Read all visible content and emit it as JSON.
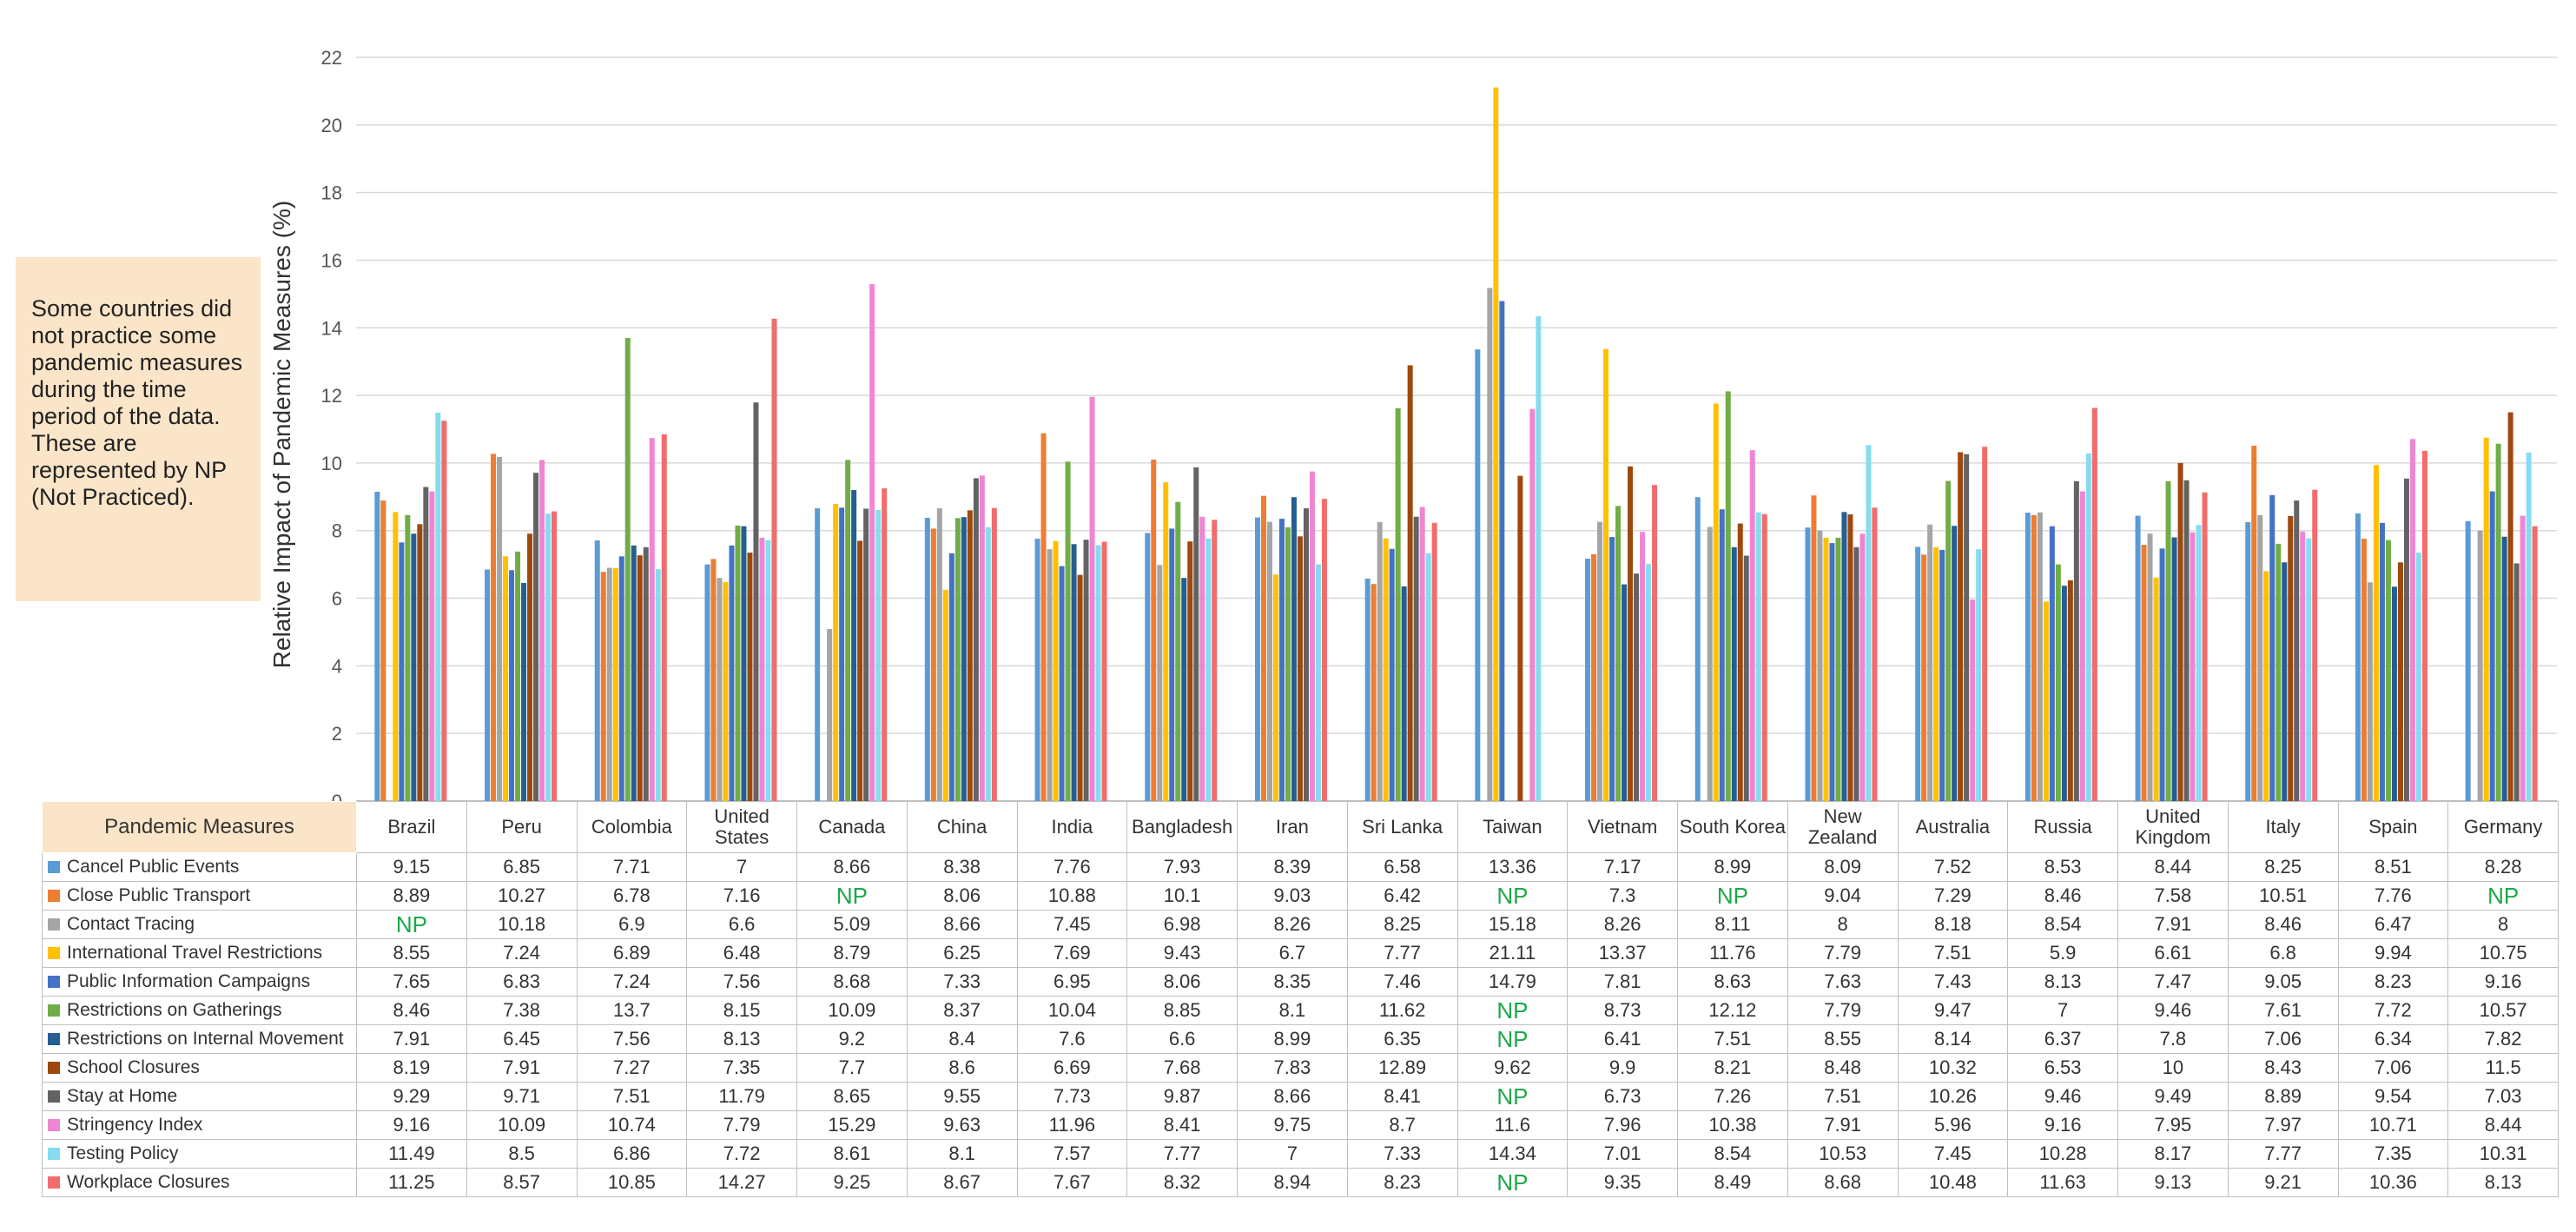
{
  "note": "Some countries did not practice some pandemic measures during the time period of the data. These are represented by NP (Not Practiced).",
  "table_header": "Pandemic Measures",
  "chart_data": {
    "type": "bar",
    "title": "",
    "xlabel": "",
    "ylabel": "Relative Impact of Pandemic Measures (%)",
    "ylim": [
      0,
      22
    ],
    "yticks": [
      "0",
      "2",
      "4",
      "6",
      "8",
      "10",
      "12",
      "14",
      "16",
      "18",
      "20",
      "22"
    ],
    "grid": true,
    "legend": "table-left",
    "categories": [
      "Brazil",
      "Peru",
      "Colombia",
      "United States",
      "Canada",
      "China",
      "India",
      "Bangladesh",
      "Iran",
      "Sri Lanka",
      "Taiwan",
      "Vietnam",
      "South Korea",
      "New Zealand",
      "Australia",
      "Russia",
      "United Kingdom",
      "Italy",
      "Spain",
      "Germany"
    ],
    "series": [
      {
        "name": "Cancel Public Events",
        "color": "#5b9bd5",
        "display": [
          "9.15",
          "6.85",
          "7.71",
          "7",
          "8.66",
          "8.38",
          "7.76",
          "7.93",
          "8.39",
          "6.58",
          "13.36",
          "7.17",
          "8.99",
          "8.09",
          "7.52",
          "8.53",
          "8.44",
          "8.25",
          "8.51",
          "8.28"
        ]
      },
      {
        "name": "Close Public Transport",
        "color": "#ed7d31",
        "display": [
          "8.89",
          "10.27",
          "6.78",
          "7.16",
          "NP",
          "8.06",
          "10.88",
          "10.1",
          "9.03",
          "6.42",
          "NP",
          "7.3",
          "NP",
          "9.04",
          "7.29",
          "8.46",
          "7.58",
          "10.51",
          "7.76",
          "NP"
        ]
      },
      {
        "name": "Contact Tracing",
        "color": "#a5a5a5",
        "display": [
          "NP",
          "10.18",
          "6.9",
          "6.6",
          "5.09",
          "8.66",
          "7.45",
          "6.98",
          "8.26",
          "8.25",
          "15.18",
          "8.26",
          "8.11",
          "8",
          "8.18",
          "8.54",
          "7.91",
          "8.46",
          "6.47",
          "8"
        ]
      },
      {
        "name": "International Travel Restrictions",
        "color": "#ffc000",
        "display": [
          "8.55",
          "7.24",
          "6.89",
          "6.48",
          "8.79",
          "6.25",
          "7.69",
          "9.43",
          "6.7",
          "7.77",
          "21.11",
          "13.37",
          "11.76",
          "7.79",
          "7.51",
          "5.9",
          "6.61",
          "6.8",
          "9.94",
          "10.75"
        ]
      },
      {
        "name": "Public Information Campaigns",
        "color": "#4472c4",
        "display": [
          "7.65",
          "6.83",
          "7.24",
          "7.56",
          "8.68",
          "7.33",
          "6.95",
          "8.06",
          "8.35",
          "7.46",
          "14.79",
          "7.81",
          "8.63",
          "7.63",
          "7.43",
          "8.13",
          "7.47",
          "9.05",
          "8.23",
          "9.16"
        ]
      },
      {
        "name": "Restrictions on Gatherings",
        "color": "#70ad47",
        "display": [
          "8.46",
          "7.38",
          "13.7",
          "8.15",
          "10.09",
          "8.37",
          "10.04",
          "8.85",
          "8.1",
          "11.62",
          "NP",
          "8.73",
          "12.12",
          "7.79",
          "9.47",
          "7",
          "9.46",
          "7.61",
          "7.72",
          "10.57"
        ]
      },
      {
        "name": "Restrictions on Internal Movement",
        "color": "#255e91",
        "display": [
          "7.91",
          "6.45",
          "7.56",
          "8.13",
          "9.2",
          "8.4",
          "7.6",
          "6.6",
          "8.99",
          "6.35",
          "NP",
          "6.41",
          "7.51",
          "8.55",
          "8.14",
          "6.37",
          "7.8",
          "7.06",
          "6.34",
          "7.82"
        ]
      },
      {
        "name": "School Closures",
        "color": "#9e480e",
        "display": [
          "8.19",
          "7.91",
          "7.27",
          "7.35",
          "7.7",
          "8.6",
          "6.69",
          "7.68",
          "7.83",
          "12.89",
          "9.62",
          "9.9",
          "8.21",
          "8.48",
          "10.32",
          "6.53",
          "10",
          "8.43",
          "7.06",
          "11.5"
        ]
      },
      {
        "name": "Stay at Home",
        "color": "#636363",
        "display": [
          "9.29",
          "9.71",
          "7.51",
          "11.79",
          "8.65",
          "9.55",
          "7.73",
          "9.87",
          "8.66",
          "8.41",
          "NP",
          "6.73",
          "7.26",
          "7.51",
          "10.26",
          "9.46",
          "9.49",
          "8.89",
          "9.54",
          "7.03"
        ]
      },
      {
        "name": "Stringency Index",
        "color": "#ee86d4",
        "display": [
          "9.16",
          "10.09",
          "10.74",
          "7.79",
          "15.29",
          "9.63",
          "11.96",
          "8.41",
          "9.75",
          "8.7",
          "11.6",
          "7.96",
          "10.38",
          "7.91",
          "5.96",
          "9.16",
          "7.95",
          "7.97",
          "10.71",
          "8.44"
        ]
      },
      {
        "name": "Testing Policy",
        "color": "#86dcef",
        "display": [
          "11.49",
          "8.5",
          "6.86",
          "7.72",
          "8.61",
          "8.1",
          "7.57",
          "7.77",
          "7",
          "7.33",
          "14.34",
          "7.01",
          "8.54",
          "10.53",
          "7.45",
          "10.28",
          "8.17",
          "7.77",
          "7.35",
          "10.31"
        ]
      },
      {
        "name": "Workplace Closures",
        "color": "#f36c6c",
        "display": [
          "11.25",
          "8.57",
          "10.85",
          "14.27",
          "9.25",
          "8.67",
          "7.67",
          "8.32",
          "8.94",
          "8.23",
          "NP",
          "9.35",
          "8.49",
          "8.68",
          "10.48",
          "11.63",
          "9.13",
          "9.21",
          "10.36",
          "8.13"
        ]
      }
    ]
  }
}
